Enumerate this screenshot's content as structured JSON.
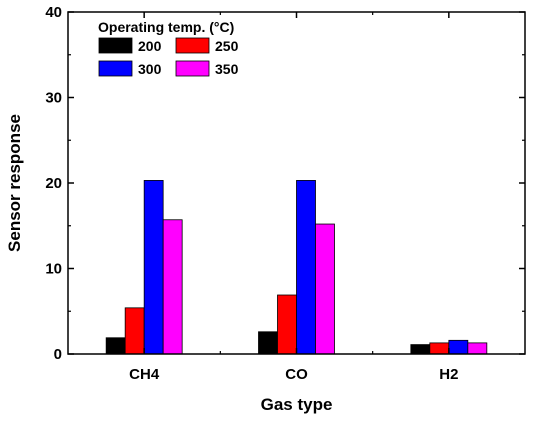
{
  "chart_data": {
    "type": "bar",
    "xlabel": "Gas type",
    "ylabel": "Sensor response",
    "ylim": [
      0,
      40
    ],
    "yticks": [
      0,
      10,
      20,
      30,
      40
    ],
    "categories": [
      "CH4",
      "CO",
      "H2"
    ],
    "legend": {
      "title": "Operating temp. (°C)",
      "placement": "top-left"
    },
    "series": [
      {
        "name": "200",
        "color": "#000000",
        "values": [
          1.9,
          2.6,
          1.1
        ]
      },
      {
        "name": "250",
        "color": "#ff0000",
        "values": [
          5.4,
          6.9,
          1.3
        ]
      },
      {
        "name": "300",
        "color": "#0000ff",
        "values": [
          20.3,
          20.3,
          1.6
        ]
      },
      {
        "name": "350",
        "color": "#ff00ff",
        "values": [
          15.7,
          15.2,
          1.3
        ]
      }
    ]
  }
}
